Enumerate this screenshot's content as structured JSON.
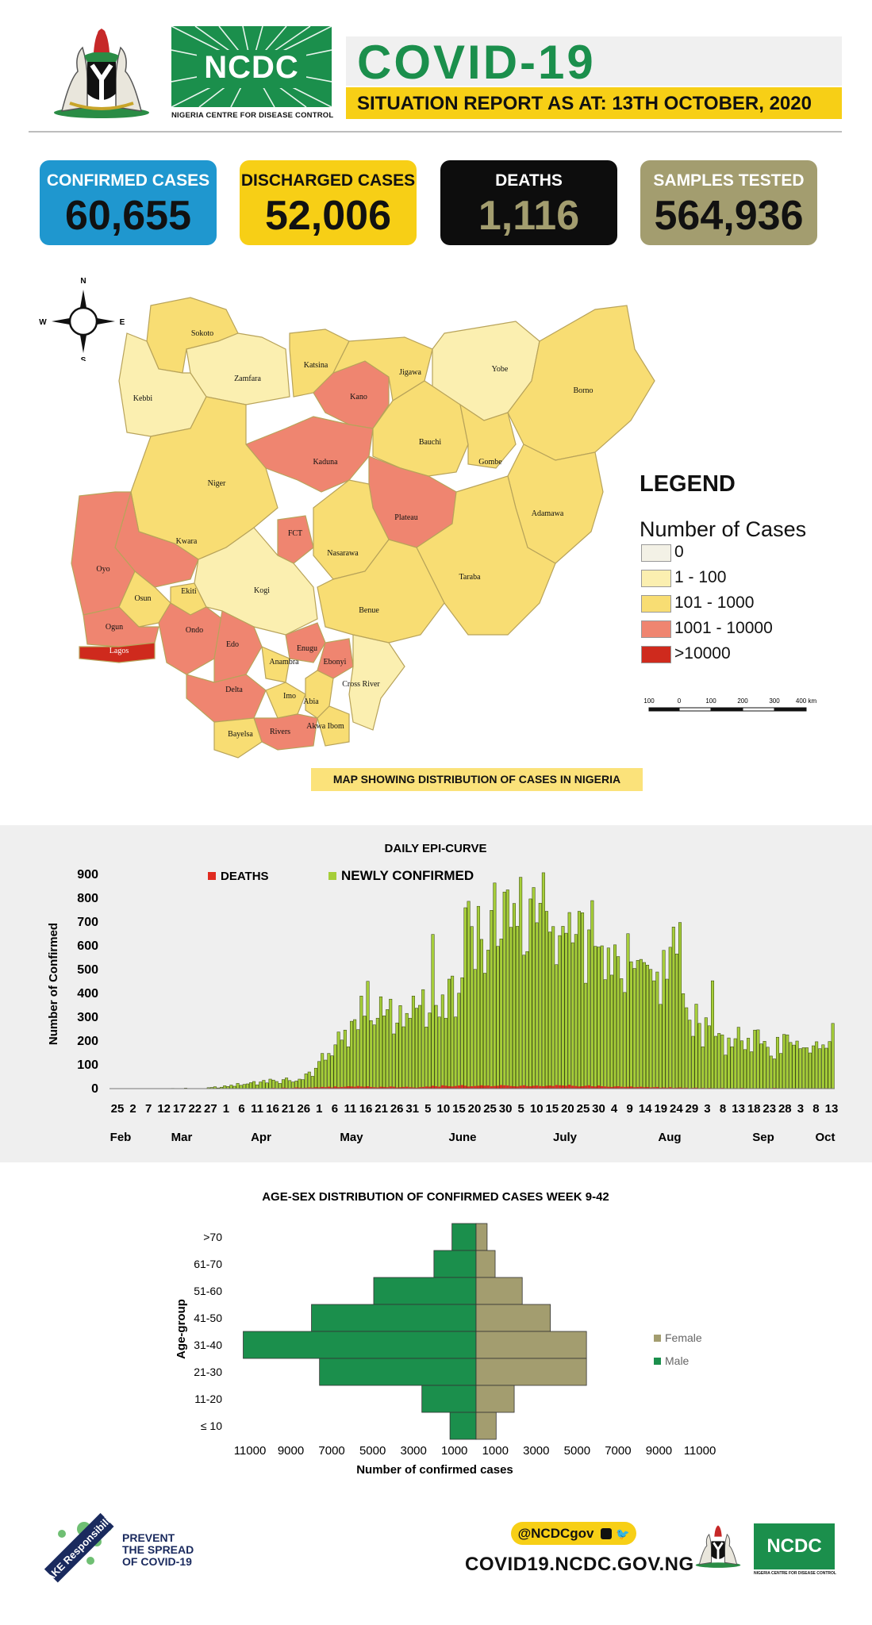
{
  "header": {
    "org_logo_text": "NCDC",
    "org_name": "NIGERIA CENTRE FOR DISEASE CONTROL",
    "title": "COVID-19",
    "subtitle": "SITUATION REPORT AS AT: 13TH OCTOBER, 2020"
  },
  "stats": [
    {
      "label": "CONFIRMED CASES",
      "value": "60,655",
      "bg": "#1f97cf",
      "label_color": "#ffffff",
      "value_color": "#111111"
    },
    {
      "label": "DISCHARGED CASES",
      "value": "52,006",
      "bg": "#f7cf16",
      "label_color": "#111111",
      "value_color": "#111111"
    },
    {
      "label": "DEATHS",
      "value": "1,116",
      "bg": "#0d0d0d",
      "label_color": "#ffffff",
      "value_color": "#a39d6f"
    },
    {
      "label": "SAMPLES TESTED",
      "value": "564,936",
      "bg": "#a39d6f",
      "label_color": "#ffffff",
      "value_color": "#111111"
    }
  ],
  "map": {
    "compass": {
      "n": "N",
      "s": "S",
      "e": "E",
      "w": "W"
    },
    "states": [
      {
        "name": "Sokoto",
        "cat": 2
      },
      {
        "name": "Zamfara",
        "cat": 1
      },
      {
        "name": "Kebbi",
        "cat": 1
      },
      {
        "name": "Katsina",
        "cat": 2
      },
      {
        "name": "Kano",
        "cat": 3
      },
      {
        "name": "Jigawa",
        "cat": 2
      },
      {
        "name": "Yobe",
        "cat": 1
      },
      {
        "name": "Borno",
        "cat": 2
      },
      {
        "name": "Kaduna",
        "cat": 3
      },
      {
        "name": "Bauchi",
        "cat": 2
      },
      {
        "name": "Gombe",
        "cat": 2
      },
      {
        "name": "Niger",
        "cat": 2
      },
      {
        "name": "Adamawa",
        "cat": 2
      },
      {
        "name": "Kwara",
        "cat": 3
      },
      {
        "name": "Plateau",
        "cat": 3
      },
      {
        "name": "FCT",
        "cat": 3
      },
      {
        "name": "Nasarawa",
        "cat": 2
      },
      {
        "name": "Oyo",
        "cat": 3
      },
      {
        "name": "Taraba",
        "cat": 2
      },
      {
        "name": "Osun",
        "cat": 2
      },
      {
        "name": "Ekiti",
        "cat": 2
      },
      {
        "name": "Kogi",
        "cat": 1
      },
      {
        "name": "Benue",
        "cat": 2
      },
      {
        "name": "Ogun",
        "cat": 3
      },
      {
        "name": "Ondo",
        "cat": 3
      },
      {
        "name": "Edo",
        "cat": 3
      },
      {
        "name": "Lagos",
        "cat": 4
      },
      {
        "name": "Enugu",
        "cat": 3
      },
      {
        "name": "Ebonyi",
        "cat": 3
      },
      {
        "name": "Anambra",
        "cat": 2
      },
      {
        "name": "Delta",
        "cat": 3
      },
      {
        "name": "Cross River",
        "cat": 1
      },
      {
        "name": "Imo",
        "cat": 2
      },
      {
        "name": "Abia",
        "cat": 2
      },
      {
        "name": "Akwa Ibom",
        "cat": 2
      },
      {
        "name": "Rivers",
        "cat": 3
      },
      {
        "name": "Bayelsa",
        "cat": 2
      }
    ],
    "legend_title": "LEGEND",
    "legend_subtitle": "Number of Cases",
    "legend": [
      {
        "label": "0",
        "color": "#f3f1e6"
      },
      {
        "label": "1 - 100",
        "color": "#fbefb0"
      },
      {
        "label": "101 - 1000",
        "color": "#f8dd73"
      },
      {
        "label": "1001 - 10000",
        "color": "#ef8570"
      },
      {
        "label": ">10000",
        "color": "#cf2a1d"
      }
    ],
    "scale_ticks": [
      "100",
      "0",
      "100",
      "200",
      "300",
      "400 km"
    ],
    "caption": "MAP SHOWING DISTRIBUTION OF CASES IN NIGERIA"
  },
  "chart_data": [
    {
      "type": "bar",
      "title": "DAILY EPI-CURVE",
      "ylabel": "Number of Confirmed",
      "ylim": [
        0,
        900
      ],
      "yticks": [
        0,
        100,
        200,
        300,
        400,
        500,
        600,
        700,
        800,
        900
      ],
      "x_tick_labels": [
        "25",
        "2",
        "7",
        "12",
        "17",
        "22",
        "27",
        "1",
        "6",
        "11",
        "16",
        "21",
        "26",
        "1",
        "6",
        "11",
        "16",
        "21",
        "26",
        "31",
        "5",
        "10",
        "15",
        "20",
        "25",
        "30",
        "5",
        "10",
        "15",
        "20",
        "25",
        "30",
        "4",
        "9",
        "14",
        "19",
        "24",
        "29",
        "3",
        "8",
        "13",
        "18",
        "23",
        "28",
        "3",
        "8",
        "13"
      ],
      "months": [
        "Feb",
        "Mar",
        "Apr",
        "May",
        "June",
        "July",
        "Aug",
        "Sep",
        "Oct"
      ],
      "x_start": "2020-02-25",
      "x_end": "2020-10-13",
      "legend_position": "top",
      "series": [
        {
          "name": "DEATHS",
          "color": "#e02b20",
          "values": [
            0,
            0,
            0,
            0,
            0,
            0,
            0,
            0,
            0,
            0,
            0,
            0,
            0,
            0,
            0,
            0,
            0,
            0,
            0,
            0,
            0,
            0,
            0,
            0,
            0,
            0,
            0,
            0,
            0,
            0,
            0,
            0,
            0,
            0,
            0,
            0,
            0,
            0,
            0,
            1,
            1,
            0,
            1,
            1,
            2,
            0,
            1,
            2,
            1,
            2,
            3,
            2,
            2,
            4,
            3,
            2,
            3,
            5,
            4,
            3,
            4,
            5,
            4,
            6,
            5,
            7,
            6,
            8,
            5,
            9,
            6,
            7,
            8,
            10,
            9,
            8,
            11,
            9,
            8,
            10,
            7,
            6,
            5,
            8,
            7,
            6,
            9,
            8,
            5,
            6,
            7,
            8,
            6,
            5,
            4,
            6,
            7,
            9,
            8,
            12,
            10,
            8,
            14,
            12,
            10,
            9,
            11,
            13,
            15,
            12,
            9,
            10,
            11,
            12,
            14,
            12,
            13,
            10,
            11,
            12,
            15,
            14,
            13,
            11,
            10,
            9,
            12,
            14,
            11,
            10,
            12,
            13,
            11,
            10,
            12,
            13,
            11,
            15,
            14,
            13,
            12,
            16,
            12,
            11,
            9,
            10,
            12,
            14,
            10,
            9,
            13,
            10,
            9,
            8,
            7,
            9,
            10,
            8,
            7,
            8,
            9,
            6,
            7,
            8,
            6,
            7,
            5,
            6,
            7,
            4,
            5,
            4,
            6,
            3,
            4,
            5,
            3,
            4,
            2,
            3,
            4,
            2,
            3,
            2,
            3,
            2,
            1,
            2,
            3,
            1,
            2,
            1,
            2,
            1,
            3,
            2,
            1,
            2,
            1,
            2,
            1,
            1,
            2,
            1,
            3,
            2,
            1,
            2,
            1,
            1,
            2,
            1,
            1,
            2,
            1,
            1,
            2,
            1,
            2,
            1,
            2,
            1,
            1
          ]
        },
        {
          "name": "NEWLY CONFIRMED",
          "color": "#a6ce39",
          "values": [
            0,
            0,
            0,
            0,
            0,
            0,
            0,
            0,
            0,
            0,
            0,
            0,
            0,
            0,
            0,
            0,
            0,
            0,
            0,
            1,
            0,
            0,
            0,
            2,
            0,
            0,
            0,
            0,
            0,
            0,
            4,
            5,
            8,
            3,
            6,
            12,
            9,
            15,
            10,
            22,
            14,
            18,
            20,
            25,
            30,
            16,
            28,
            35,
            24,
            40,
            36,
            30,
            22,
            38,
            45,
            34,
            28,
            32,
            40,
            38,
            62,
            70,
            52,
            86,
            114,
            148,
            120,
            148,
            138,
            184,
            238,
            204,
            246,
            176,
            283,
            290,
            248,
            389,
            305,
            451,
            286,
            268,
            296,
            386,
            306,
            332,
            376,
            230,
            276,
            349,
            260,
            316,
            296,
            389,
            338,
            350,
            416,
            259,
            318,
            648,
            350,
            301,
            394,
            296,
            460,
            473,
            301,
            401,
            466,
            760,
            787,
            681,
            501,
            766,
            627,
            485,
            582,
            749,
            864,
            598,
            629,
            826,
            835,
            678,
            778,
            682,
            888,
            561,
            576,
            797,
            845,
            697,
            779,
            907,
            745,
            658,
            681,
            521,
            643,
            682,
            653,
            740,
            613,
            648,
            745,
            739,
            443,
            667,
            790,
            598,
            595,
            600,
            458,
            591,
            477,
            604,
            555,
            462,
            404,
            651,
            533,
            505,
            539,
            543,
            530,
            519,
            501,
            453,
            490,
            354,
            581,
            460,
            594,
            679,
            566,
            698,
            399,
            340,
            288,
            220,
            355,
            274,
            176,
            298,
            264,
            453,
            220,
            232,
            226,
            141,
            213,
            176,
            210,
            258,
            201,
            164,
            212,
            155,
            246,
            247,
            188,
            199,
            174,
            137,
            125,
            216,
            148,
            228,
            226,
            194,
            183,
            200,
            168,
            172,
            172,
            150,
            180,
            197,
            168,
            184,
            170,
            198,
            274
          ]
        }
      ]
    },
    {
      "type": "bar",
      "orientation": "horizontal",
      "title": "AGE-SEX DISTRIBUTION OF CONFIRMED CASES WEEK 9-42",
      "xlabel": "Number of confirmed cases",
      "ylabel": "Age-group",
      "categories": [
        ">70",
        "61-70",
        "51-60",
        "41-50",
        "31-40",
        "21-30",
        "11-20",
        "≤ 10"
      ],
      "x_tick_labels": [
        "11000",
        "9000",
        "7000",
        "5000",
        "3000",
        "1000",
        "1000",
        "3000",
        "5000",
        "7000",
        "9000",
        "11000"
      ],
      "xlim": [
        -12000,
        12000
      ],
      "legend_position": "right",
      "series": [
        {
          "name": "Female",
          "color": "#a39d6f",
          "values": [
            550,
            950,
            2300,
            3700,
            5500,
            5500,
            1900,
            1000
          ]
        },
        {
          "name": "Male",
          "color": "#1b8f4c",
          "values": [
            -1200,
            -2100,
            -5100,
            -8200,
            -11600,
            -7800,
            -2700,
            -1300
          ]
        }
      ]
    }
  ],
  "footer": {
    "badge_text": "TAKE Responsibility",
    "prevent_lines": [
      "PREVENT",
      "THE SPREAD",
      "OF COVID-19"
    ],
    "handle": "@NCDCgov",
    "url": "COVID19.NCDC.GOV.NG",
    "logo_text": "NCDC",
    "logo_sub": "NIGERIA CENTRE FOR DISEASE CONTROL"
  }
}
